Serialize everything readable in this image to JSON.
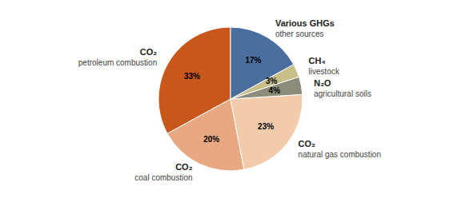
{
  "chart_data": {
    "type": "pie",
    "categories": [
      "CO₂\npetroleum combustion",
      "CO₂\ncoal combustion",
      "CO₂\nnatural gas combustion",
      "N₂O\nagricultural soils",
      "CH₄\nlivestock",
      "Various GHGs\nother sources"
    ],
    "values": [
      33,
      20,
      23,
      4,
      3,
      17
    ],
    "value_labels": [
      "33%",
      "20%",
      "23%",
      "4%",
      "3%",
      "17%"
    ],
    "colors": [
      "#C8571B",
      "#E8A882",
      "#F2CCAA",
      "#8C8C7A",
      "#C8BE88",
      "#4A6E9E"
    ],
    "data_labels": true
  }
}
